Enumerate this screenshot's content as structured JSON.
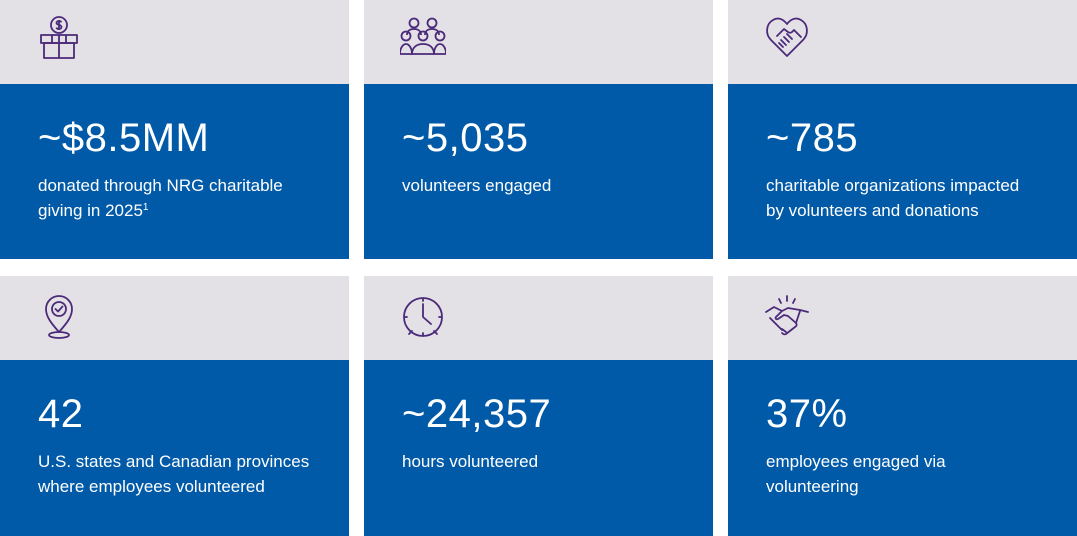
{
  "colors": {
    "top_band": "#e4e1e6",
    "card_blue": "#005aa8",
    "icon_purple": "#4b2a7a",
    "text": "#ffffff"
  },
  "stats": [
    {
      "icon": "gift-dollar-icon",
      "value": "~$8.5MM",
      "label": "donated through NRG charitable\ngiving in 2025",
      "footnote": "1"
    },
    {
      "icon": "people-group-icon",
      "value": "~5,035",
      "label": "volunteers engaged"
    },
    {
      "icon": "heart-handshake-icon",
      "value": "~785",
      "label": "charitable organizations impacted\nby volunteers and donations"
    },
    {
      "icon": "location-check-icon",
      "value": "42",
      "label": "U.S. states and Canadian provinces\nwhere employees volunteered"
    },
    {
      "icon": "clock-icon",
      "value": "~24,357",
      "label": "hours volunteered"
    },
    {
      "icon": "handshake-icon",
      "value": "37%",
      "label": "employees engaged via\nvolunteering"
    }
  ]
}
